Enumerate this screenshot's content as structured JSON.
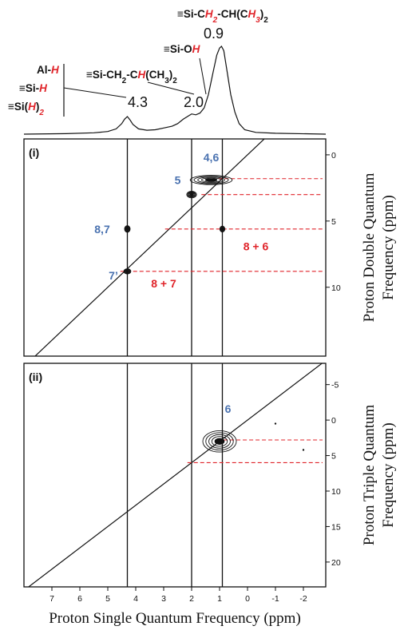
{
  "chart_data": [
    {
      "type": "line",
      "panel": "1D proton spectrum",
      "peaks": [
        {
          "shift": 4.3,
          "label": "4.3"
        },
        {
          "shift": 2.0,
          "label": "2.0"
        },
        {
          "shift": 0.9,
          "label": "0.9"
        }
      ],
      "assignments": [
        {
          "parts": [
            {
              "t": "≡Si-C"
            },
            {
              "t": "H",
              "red": true
            },
            {
              "t": "2",
              "red": true,
              "sub": true
            },
            {
              "t": "-CH(C"
            },
            {
              "t": "H",
              "red": true
            },
            {
              "t": "3",
              "red": true,
              "sub": true
            },
            {
              "t": ")"
            },
            {
              "t": "2",
              "sub": true
            }
          ]
        },
        {
          "parts": [
            {
              "t": "≡Si-O"
            },
            {
              "t": "H",
              "red": true
            }
          ]
        },
        {
          "parts": [
            {
              "t": "≡Si-CH"
            },
            {
              "t": "2",
              "sub": true
            },
            {
              "t": "-C"
            },
            {
              "t": "H",
              "red": true
            },
            {
              "t": "(CH"
            },
            {
              "t": "3",
              "sub": true
            },
            {
              "t": ")"
            },
            {
              "t": "2",
              "sub": true
            }
          ]
        },
        {
          "parts": [
            {
              "t": "Al-"
            },
            {
              "t": "H",
              "red": true
            }
          ]
        },
        {
          "parts": [
            {
              "t": "≡Si-"
            },
            {
              "t": "H",
              "red": true
            }
          ]
        },
        {
          "parts": [
            {
              "t": "≡Si("
            },
            {
              "t": "H",
              "red": true
            },
            {
              "t": ")"
            },
            {
              "t": "2",
              "red": true,
              "sub": true
            }
          ]
        }
      ],
      "spectrum": [
        [
          8.0,
          0.0
        ],
        [
          6.5,
          0.005
        ],
        [
          5.5,
          0.015
        ],
        [
          5.0,
          0.03
        ],
        [
          4.7,
          0.06
        ],
        [
          4.5,
          0.12
        ],
        [
          4.4,
          0.17
        ],
        [
          4.3,
          0.2
        ],
        [
          4.2,
          0.16
        ],
        [
          4.1,
          0.11
        ],
        [
          3.9,
          0.06
        ],
        [
          3.6,
          0.045
        ],
        [
          3.3,
          0.05
        ],
        [
          3.0,
          0.07
        ],
        [
          2.7,
          0.09
        ],
        [
          2.5,
          0.12
        ],
        [
          2.3,
          0.17
        ],
        [
          2.1,
          0.21
        ],
        [
          2.0,
          0.23
        ],
        [
          1.85,
          0.22
        ],
        [
          1.7,
          0.24
        ],
        [
          1.55,
          0.3
        ],
        [
          1.4,
          0.45
        ],
        [
          1.25,
          0.68
        ],
        [
          1.1,
          0.9
        ],
        [
          1.0,
          0.98
        ],
        [
          0.93,
          1.0
        ],
        [
          0.85,
          0.95
        ],
        [
          0.75,
          0.75
        ],
        [
          0.6,
          0.45
        ],
        [
          0.45,
          0.25
        ],
        [
          0.3,
          0.12
        ],
        [
          0.1,
          0.05
        ],
        [
          -0.3,
          0.02
        ],
        [
          -1.0,
          0.01
        ],
        [
          -2.8,
          0.0
        ]
      ]
    },
    {
      "type": "scatter",
      "panel": "(i)",
      "panel_label": "(i)",
      "xlim": [
        8,
        -2.8
      ],
      "ylim": [
        -1.2,
        15.2
      ],
      "y_ticks": [
        0,
        5,
        10
      ],
      "diagonal_slope": 2,
      "vertical_lines": [
        4.3,
        2.0,
        0.9
      ],
      "dashed_levels": [
        1.8,
        3.0,
        5.6,
        8.8
      ],
      "peaks": [
        {
          "x": 4.3,
          "y": 5.6,
          "w": 0.2,
          "h": 0.5
        },
        {
          "x": 4.3,
          "y": 8.8,
          "w": 0.25,
          "h": 0.4
        },
        {
          "x": 2.0,
          "y": 3.0,
          "w": 0.35,
          "h": 0.5
        },
        {
          "x": 1.3,
          "y": 1.9,
          "w": 1.5,
          "h": 0.7
        },
        {
          "x": 0.9,
          "y": 5.6,
          "w": 0.18,
          "h": 0.45
        }
      ],
      "annotations": [
        {
          "text": "4,6",
          "color": "blue",
          "x": 1.3,
          "y": 0.5
        },
        {
          "text": "5",
          "color": "blue",
          "x": 2.5,
          "y": 2.2
        },
        {
          "text": "8,7",
          "color": "blue",
          "x": 5.2,
          "y": 5.9
        },
        {
          "text": "7’",
          "color": "blue",
          "x": 4.8,
          "y": 9.4
        },
        {
          "text": "8 + 6",
          "color": "red",
          "x": -0.3,
          "y": 7.2
        },
        {
          "text": "8 + 7",
          "color": "red",
          "x": 3.0,
          "y": 10.0
        }
      ],
      "ylabel_lines": [
        "Proton Double Quantum",
        "Frequency (ppm)"
      ]
    },
    {
      "type": "scatter",
      "panel": "(ii)",
      "panel_label": "(ii)",
      "xlim": [
        8,
        -2.8
      ],
      "ylim": [
        -8,
        23.5
      ],
      "y_ticks": [
        -5,
        0,
        5,
        10,
        15,
        20
      ],
      "diagonal_slope": 3,
      "vertical_lines": [
        4.3,
        2.0,
        0.9
      ],
      "dashed_levels": [
        2.8,
        6.0
      ],
      "peaks": [
        {
          "x": 1.0,
          "y": 3.0,
          "w": 1.2,
          "h": 3.0
        }
      ],
      "specks": [
        [
          -1.0,
          0.5
        ],
        [
          -2.0,
          4.2
        ]
      ],
      "annotations": [
        {
          "text": "6",
          "color": "blue",
          "x": 0.7,
          "y": -1.0
        }
      ],
      "x_ticks": [
        7,
        6,
        5,
        4,
        3,
        2,
        1,
        0,
        -1,
        -2
      ],
      "xlabel": "Proton Single Quantum Frequency (ppm)",
      "ylabel_lines": [
        "Proton Triple Quantum",
        "Frequency (ppm)"
      ]
    }
  ]
}
